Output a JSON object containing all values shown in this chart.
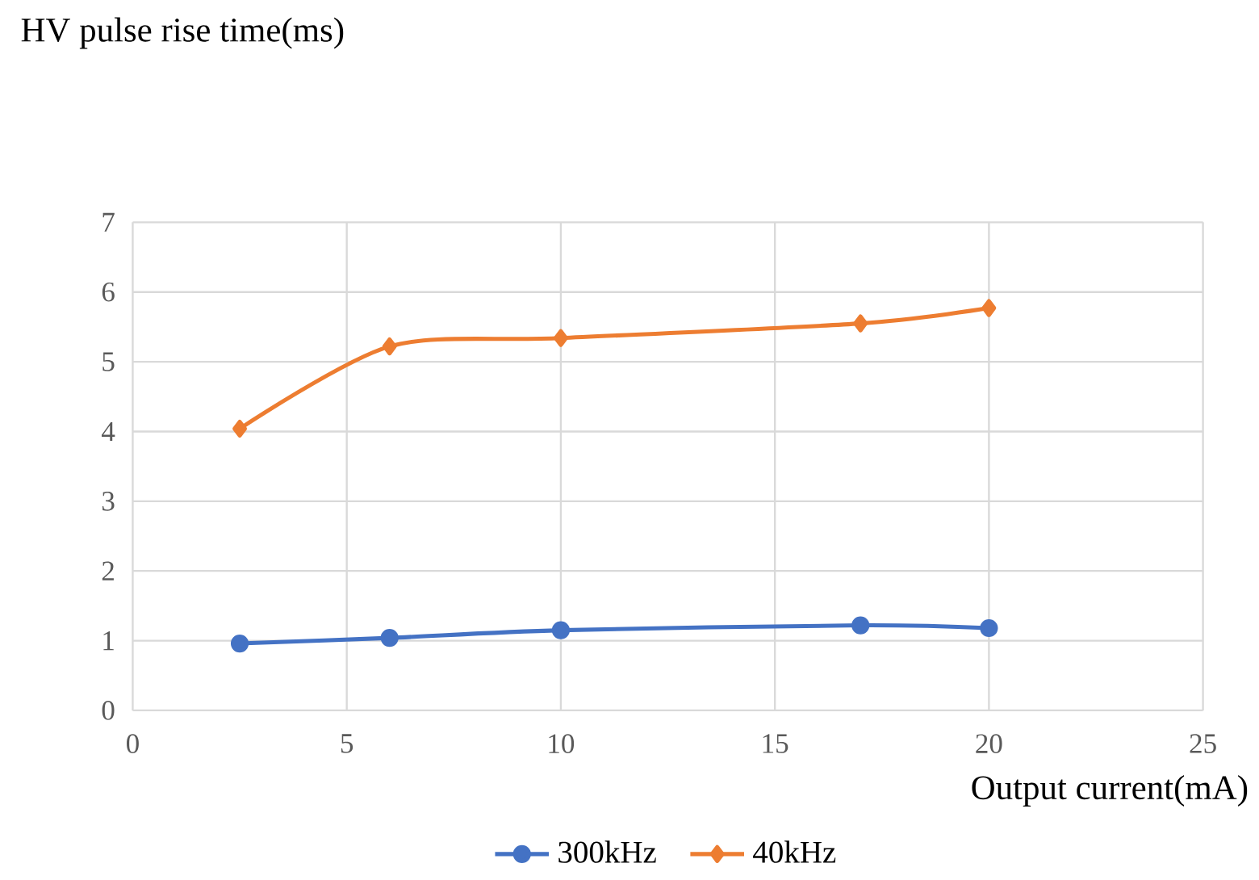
{
  "chart_data": {
    "type": "line",
    "ylabel": "HV pulse rise time(ms)",
    "xlabel": "Output current(mA)",
    "x": [
      2.5,
      6,
      10,
      17,
      20
    ],
    "series": [
      {
        "name": "300kHz",
        "color": "#4472c4",
        "marker": "circle",
        "values": [
          0.96,
          1.04,
          1.15,
          1.22,
          1.18
        ]
      },
      {
        "name": "40kHz",
        "color": "#ed7d31",
        "marker": "diamond",
        "values": [
          4.04,
          5.22,
          5.34,
          5.55,
          5.77
        ]
      }
    ],
    "xlim": [
      0,
      25
    ],
    "xticks": [
      0,
      5,
      10,
      15,
      20,
      25
    ],
    "ylim": [
      0,
      7
    ],
    "yticks": [
      0,
      1,
      2,
      3,
      4,
      5,
      6,
      7
    ],
    "grid": true,
    "legend": "bottom",
    "line_style": "solid"
  }
}
